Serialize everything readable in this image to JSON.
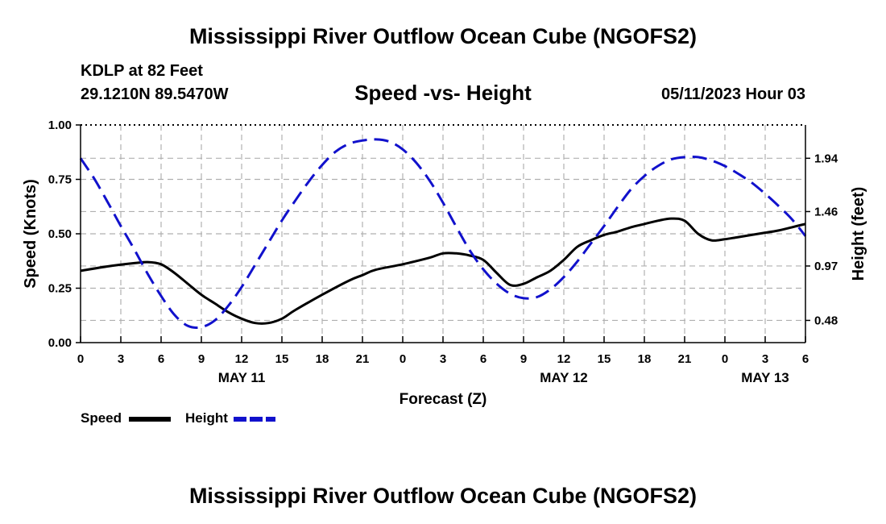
{
  "header": {
    "title": "Mississippi River Outflow Ocean Cube (NGOFS2)",
    "station": "KDLP at 82 Feet",
    "coordinates": "29.1210N  89.5470W",
    "subtitle": "Speed -vs- Height",
    "datetime": "05/11/2023 Hour 03"
  },
  "footer": {
    "title": "Mississippi River Outflow Ocean Cube (NGOFS2)"
  },
  "legend": {
    "speed_label": "Speed",
    "height_label": "Height"
  },
  "chart_data": {
    "type": "line",
    "title": "Speed -vs- Height",
    "xlabel": "Forecast (Z)",
    "ylabel": "Speed (Knots)",
    "y2label": "Height (feet)",
    "x_range": [
      0,
      54
    ],
    "ylim": [
      0,
      1
    ],
    "y2lim": [
      0.28,
      2.24
    ],
    "x_ticks": [
      0,
      3,
      6,
      9,
      12,
      15,
      18,
      21,
      24,
      27,
      30,
      33,
      36,
      39,
      42,
      45,
      48,
      51,
      54
    ],
    "x_tick_labels": [
      "0",
      "3",
      "6",
      "9",
      "12",
      "15",
      "18",
      "21",
      "0",
      "3",
      "6",
      "9",
      "12",
      "15",
      "18",
      "21",
      "0",
      "3",
      "6"
    ],
    "date_labels": [
      {
        "x": 12,
        "label": "MAY 11"
      },
      {
        "x": 36,
        "label": "MAY 12"
      },
      {
        "x": 51,
        "label": "MAY 13"
      }
    ],
    "y_ticks": [
      0.0,
      0.25,
      0.5,
      0.75,
      1.0
    ],
    "y_tick_labels": [
      "0.00",
      "0.25",
      "0.50",
      "0.75",
      "1.00"
    ],
    "y2_ticks": [
      0.48,
      0.97,
      1.46,
      1.94
    ],
    "y2_tick_labels": [
      "0.48",
      "0.97",
      "1.46",
      "1.94"
    ],
    "grid": true,
    "colors": {
      "speed": "#000000",
      "height": "#1111cc",
      "grid": "#b0b0b0"
    },
    "series": [
      {
        "name": "Speed",
        "axis": "left",
        "style": "solid",
        "x": [
          0,
          2,
          4,
          5,
          6,
          7,
          8,
          9,
          10,
          11,
          12,
          13,
          14,
          15,
          16,
          18,
          20,
          21,
          22,
          24,
          26,
          27,
          28,
          29,
          30,
          31,
          32,
          33,
          34,
          35,
          36,
          37,
          38,
          39,
          40,
          41,
          42,
          43,
          44,
          45,
          46,
          47,
          48,
          49,
          50,
          51,
          52,
          53,
          54
        ],
        "values": [
          0.33,
          0.35,
          0.365,
          0.37,
          0.36,
          0.32,
          0.27,
          0.22,
          0.18,
          0.14,
          0.11,
          0.09,
          0.09,
          0.11,
          0.15,
          0.22,
          0.285,
          0.31,
          0.335,
          0.36,
          0.39,
          0.41,
          0.41,
          0.4,
          0.38,
          0.32,
          0.265,
          0.27,
          0.3,
          0.33,
          0.38,
          0.44,
          0.47,
          0.495,
          0.51,
          0.53,
          0.545,
          0.56,
          0.57,
          0.56,
          0.5,
          0.47,
          0.475,
          0.485,
          0.495,
          0.505,
          0.515,
          0.53,
          0.545
        ]
      },
      {
        "name": "Height",
        "axis": "right",
        "style": "dashed",
        "x": [
          0,
          1,
          2,
          3,
          4,
          5,
          6,
          7,
          8,
          9,
          10,
          11,
          12,
          13,
          14,
          15,
          16,
          17,
          18,
          19,
          20,
          21,
          22,
          23,
          24,
          25,
          26,
          27,
          28,
          29,
          30,
          31,
          32,
          33,
          34,
          35,
          36,
          37,
          38,
          39,
          40,
          41,
          42,
          43,
          44,
          45,
          46,
          47,
          48,
          49,
          50,
          51,
          52,
          53,
          54
        ],
        "values": [
          1.94,
          1.76,
          1.55,
          1.33,
          1.12,
          0.9,
          0.7,
          0.53,
          0.43,
          0.42,
          0.48,
          0.61,
          0.78,
          0.98,
          1.18,
          1.38,
          1.56,
          1.73,
          1.88,
          2.0,
          2.07,
          2.1,
          2.11,
          2.09,
          2.02,
          1.9,
          1.74,
          1.54,
          1.32,
          1.11,
          0.94,
          0.81,
          0.72,
          0.68,
          0.69,
          0.76,
          0.87,
          1.01,
          1.17,
          1.33,
          1.5,
          1.66,
          1.78,
          1.87,
          1.93,
          1.95,
          1.95,
          1.92,
          1.87,
          1.8,
          1.72,
          1.62,
          1.51,
          1.39,
          1.24
        ]
      }
    ]
  }
}
